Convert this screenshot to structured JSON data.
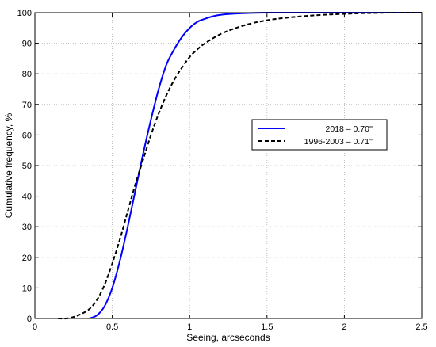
{
  "chart_data": {
    "type": "line",
    "title": "",
    "xlabel": "Seeing, arcseconds",
    "ylabel": "Cumulative frequency, %",
    "xlim": [
      0,
      2.5
    ],
    "ylim": [
      0,
      100
    ],
    "xticks": [
      0,
      0.5,
      1,
      1.5,
      2,
      2.5
    ],
    "xtick_labels": [
      "0",
      "0.5",
      "1",
      "1.5",
      "2",
      "2.5"
    ],
    "yticks": [
      0,
      10,
      20,
      30,
      40,
      50,
      60,
      70,
      80,
      90,
      100
    ],
    "ytick_labels": [
      "0",
      "10",
      "20",
      "30",
      "40",
      "50",
      "60",
      "70",
      "80",
      "90",
      "100"
    ],
    "grid": true,
    "legend_position": "right, mid-height",
    "series": [
      {
        "name": "2018 – 0.70''",
        "color": "#0000ff",
        "style": "solid",
        "x": [
          0.35,
          0.4,
          0.45,
          0.5,
          0.55,
          0.6,
          0.65,
          0.7,
          0.75,
          0.8,
          0.85,
          0.9,
          0.95,
          1.0,
          1.05,
          1.1,
          1.15,
          1.2,
          1.3,
          1.4,
          1.5,
          1.6,
          1.8,
          2.0,
          2.5
        ],
        "values": [
          0,
          1,
          4,
          10,
          19,
          30,
          42,
          54,
          65,
          75,
          83,
          88,
          92,
          95,
          97,
          98,
          98.8,
          99.3,
          99.7,
          99.9,
          100,
          100,
          100,
          100,
          100
        ]
      },
      {
        "name": "1996-2003 – 0.71''",
        "color": "#000000",
        "style": "dashed",
        "x": [
          0.15,
          0.2,
          0.25,
          0.3,
          0.35,
          0.4,
          0.45,
          0.5,
          0.55,
          0.6,
          0.65,
          0.7,
          0.75,
          0.8,
          0.85,
          0.9,
          0.95,
          1.0,
          1.05,
          1.1,
          1.2,
          1.3,
          1.4,
          1.5,
          1.6,
          1.7,
          1.8,
          1.9,
          2.0,
          2.1,
          2.2,
          2.3,
          2.5
        ],
        "values": [
          0,
          0,
          0.5,
          1.5,
          3,
          6,
          11,
          18,
          26,
          35,
          44,
          52,
          60,
          67,
          73,
          78,
          82,
          85.5,
          88,
          90,
          93,
          95,
          96.5,
          97.5,
          98.2,
          98.7,
          99.1,
          99.4,
          99.6,
          99.8,
          99.9,
          100,
          100
        ]
      }
    ]
  }
}
